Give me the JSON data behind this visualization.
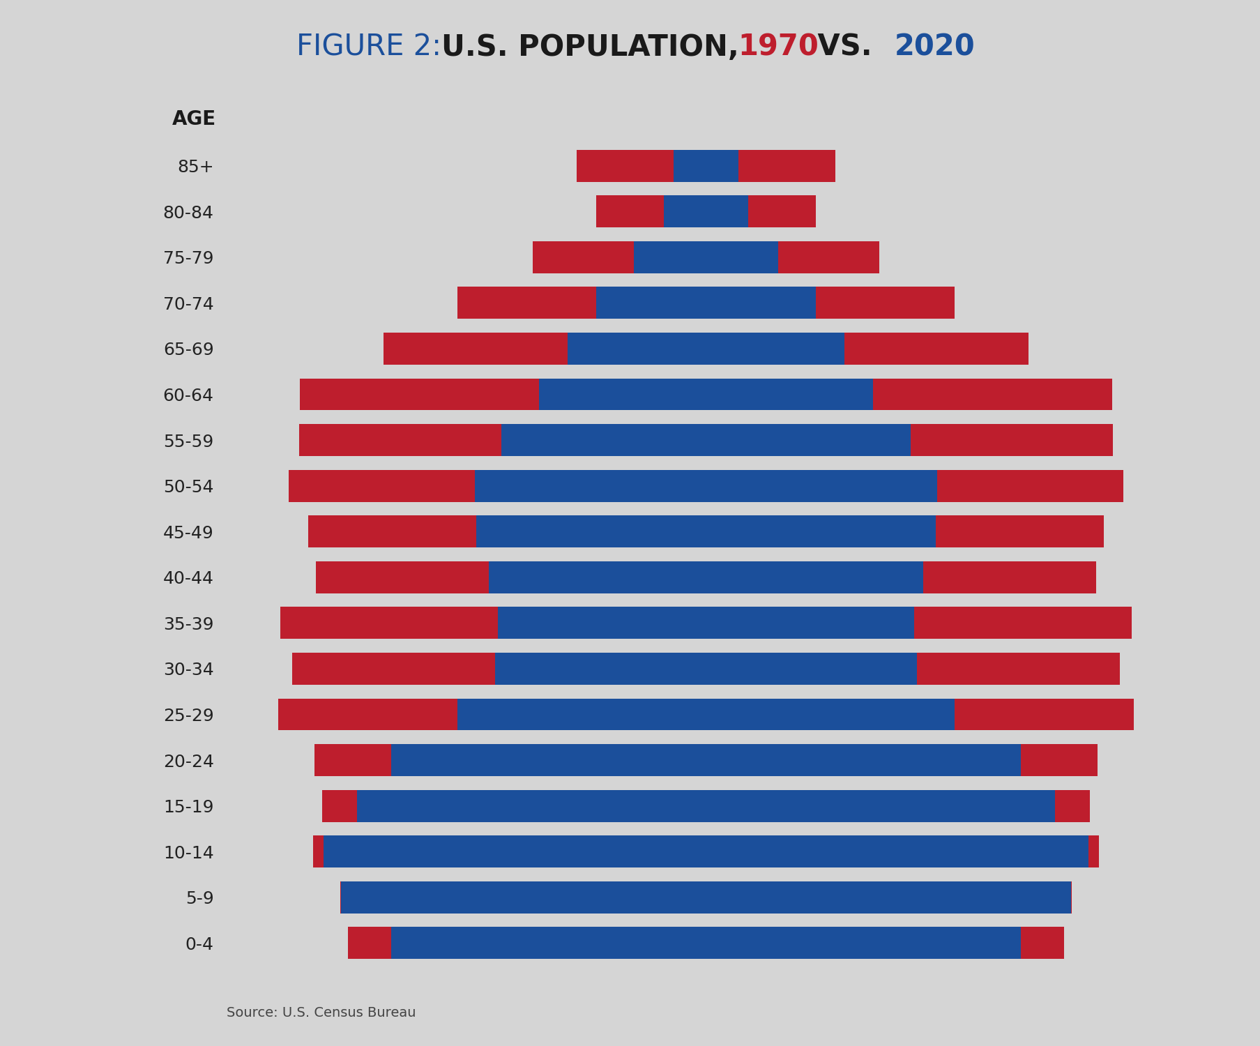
{
  "background_color": "#d5d5d5",
  "color_1970": "#1b4f9b",
  "color_2020": "#be1e2d",
  "age_labels": [
    "85+",
    "80-84",
    "75-79",
    "70-74",
    "65-69",
    "60-64",
    "55-59",
    "50-54",
    "45-49",
    "40-44",
    "35-39",
    "30-34",
    "25-29",
    "20-24",
    "15-19",
    "10-14",
    "5-9",
    "0-4"
  ],
  "pop_1970": [
    1.76,
    2.28,
    3.92,
    5.97,
    7.55,
    9.08,
    11.14,
    12.6,
    12.53,
    11.84,
    11.35,
    11.49,
    13.54,
    17.15,
    19.02,
    20.85,
    19.87,
    17.14
  ],
  "pop_2020": [
    7.04,
    5.99,
    9.45,
    13.54,
    17.58,
    22.13,
    22.18,
    22.73,
    21.66,
    21.25,
    23.2,
    22.55,
    23.3,
    21.31,
    20.92,
    21.41,
    19.92,
    19.5
  ],
  "source_text": "Source: U.S. Census Bureau",
  "age_label": "AGE",
  "title_parts": [
    {
      "text": "FIGURE 2: ",
      "color": "#1b4f9b",
      "bold": false
    },
    {
      "text": "U.S. POPULATION, ",
      "color": "#1a1a1a",
      "bold": true
    },
    {
      "text": "1970",
      "color": "#be1e2d",
      "bold": true
    },
    {
      "text": " VS. ",
      "color": "#1a1a1a",
      "bold": true
    },
    {
      "text": "2020",
      "color": "#1b4f9b",
      "bold": true
    }
  ],
  "title_fontsize": 30,
  "label_fontsize": 18,
  "age_label_fontsize": 20,
  "source_fontsize": 14,
  "bar_height": 0.7
}
